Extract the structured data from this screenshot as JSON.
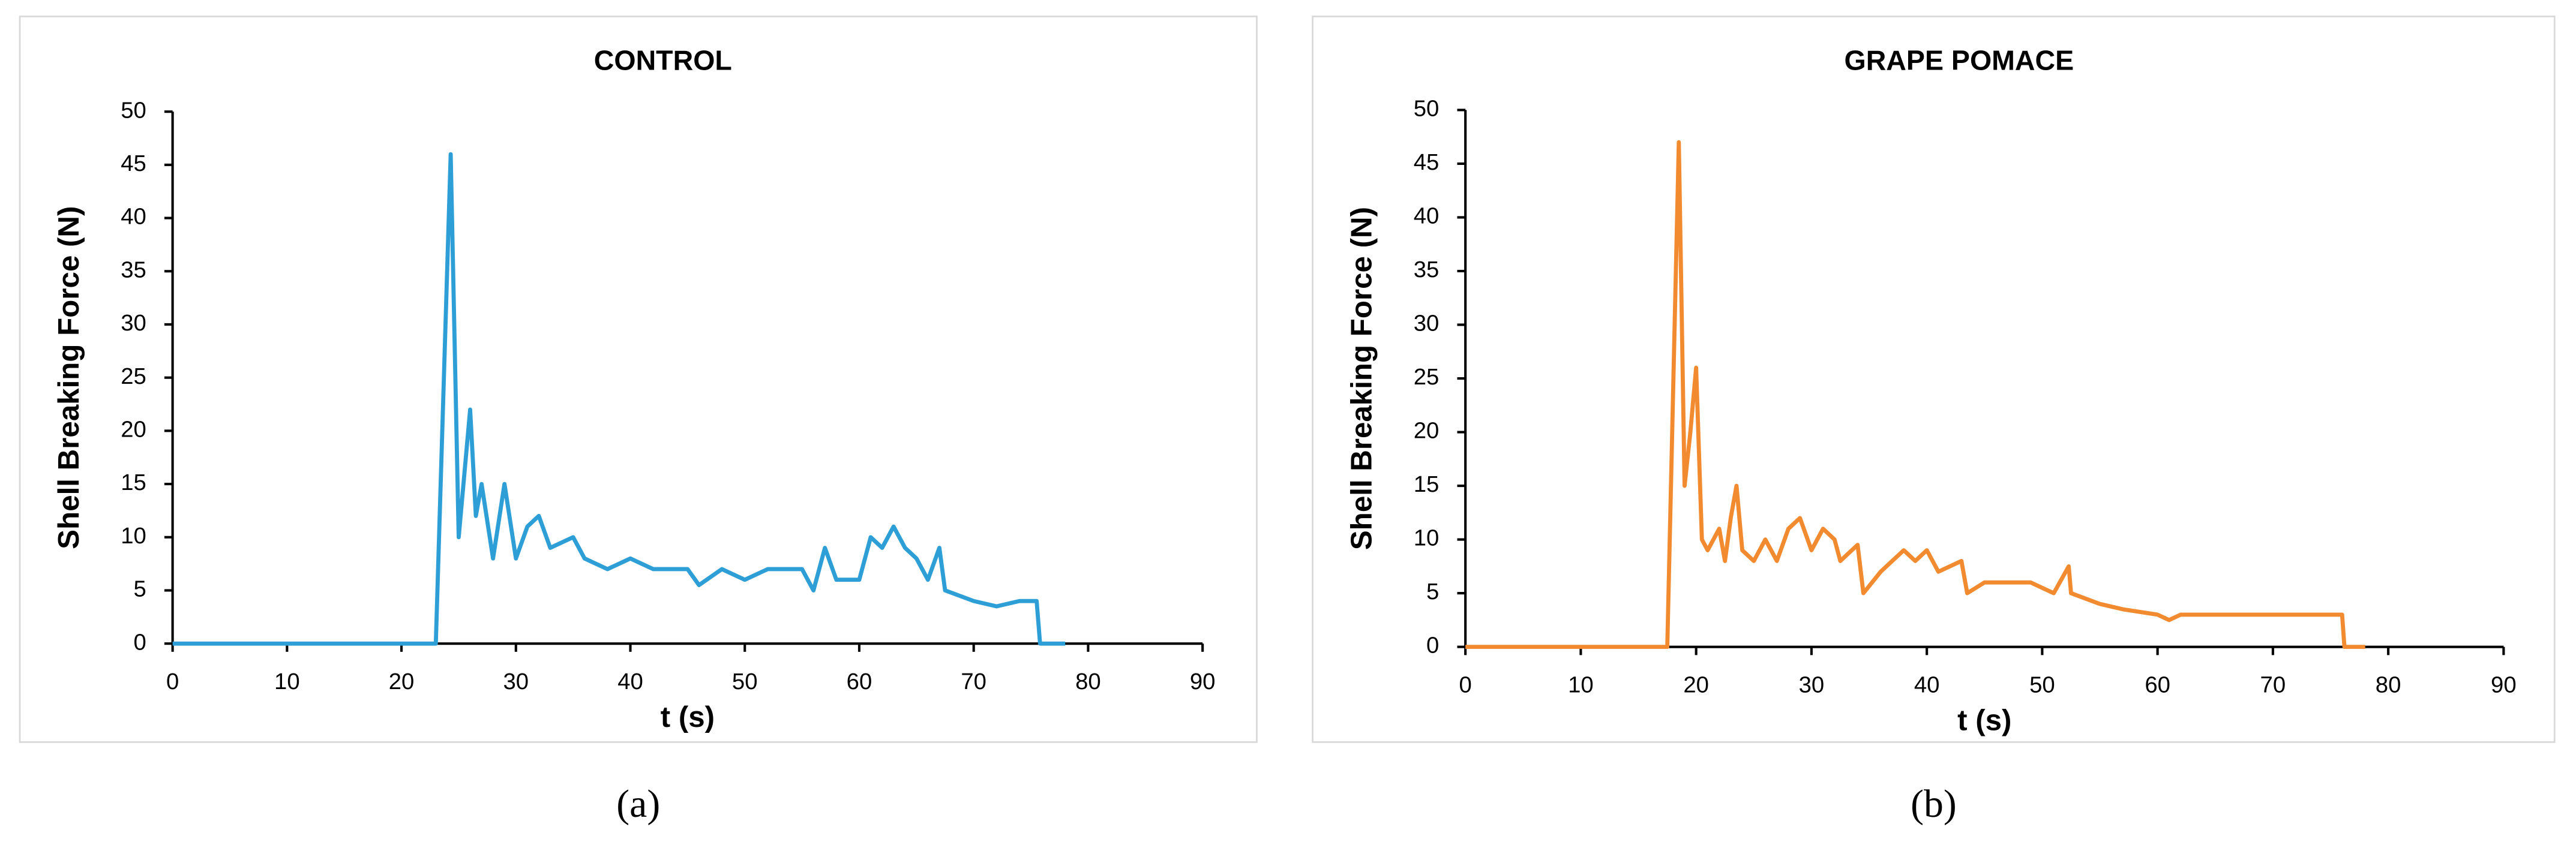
{
  "chart_data": [
    {
      "type": "line",
      "title": "CONTROL",
      "xlabel": "t (s)",
      "ylabel": "Shell Breaking Force  (N)",
      "caption": "(a)",
      "color": "#2e9fd6",
      "xlim": [
        0,
        90
      ],
      "ylim": [
        0,
        50
      ],
      "xticks": [
        0,
        10,
        20,
        30,
        40,
        50,
        60,
        70,
        80,
        90
      ],
      "yticks": [
        0,
        5,
        10,
        15,
        20,
        25,
        30,
        35,
        40,
        45,
        50
      ],
      "x": [
        0,
        23,
        24.3,
        25,
        26,
        26.5,
        27,
        28,
        29,
        30,
        31,
        32,
        33,
        35,
        36,
        38,
        40,
        42,
        45,
        46,
        48,
        50,
        52,
        55,
        56,
        57,
        58,
        60,
        61,
        62,
        63,
        64,
        65,
        66,
        67,
        67.5,
        70,
        72,
        74,
        75.5,
        75.8,
        78
      ],
      "values": [
        0,
        0,
        46,
        10,
        22,
        12,
        15,
        8,
        15,
        8,
        11,
        12,
        9,
        10,
        8,
        7,
        8,
        7,
        7,
        5.5,
        7,
        6,
        7,
        7,
        5,
        9,
        6,
        6,
        10,
        9,
        11,
        9,
        8,
        6,
        9,
        5,
        4,
        3.5,
        4,
        4,
        0,
        0
      ]
    },
    {
      "type": "line",
      "title": "GRAPE POMACE",
      "xlabel": "t (s)",
      "ylabel": "Shell Breaking Force  (N)",
      "caption": "(b)",
      "color": "#f28a30",
      "xlim": [
        0,
        90
      ],
      "ylim": [
        0,
        50
      ],
      "xticks": [
        0,
        10,
        20,
        30,
        40,
        50,
        60,
        70,
        80,
        90
      ],
      "yticks": [
        0,
        5,
        10,
        15,
        20,
        25,
        30,
        35,
        40,
        45,
        50
      ],
      "x": [
        0,
        17.5,
        18.5,
        19,
        19.5,
        20,
        20.5,
        21,
        22,
        22.5,
        23,
        23.5,
        24,
        25,
        26,
        27,
        28,
        29,
        30,
        31,
        32,
        32.5,
        34,
        34.5,
        36,
        38,
        39,
        40,
        41,
        43,
        43.5,
        45,
        47,
        49,
        51,
        52.3,
        52.5,
        55,
        57,
        60,
        61,
        62,
        66,
        70,
        72,
        76,
        76.2,
        78
      ],
      "values": [
        0,
        0,
        47,
        15,
        20,
        26,
        10,
        9,
        11,
        8,
        12,
        15,
        9,
        8,
        10,
        8,
        11,
        12,
        9,
        11,
        10,
        8,
        9.5,
        5,
        7,
        9,
        8,
        9,
        7,
        8,
        5,
        6,
        6,
        6,
        5,
        7.5,
        5,
        4,
        3.5,
        3,
        2.5,
        3,
        3,
        3,
        3,
        3,
        0,
        0
      ]
    }
  ]
}
